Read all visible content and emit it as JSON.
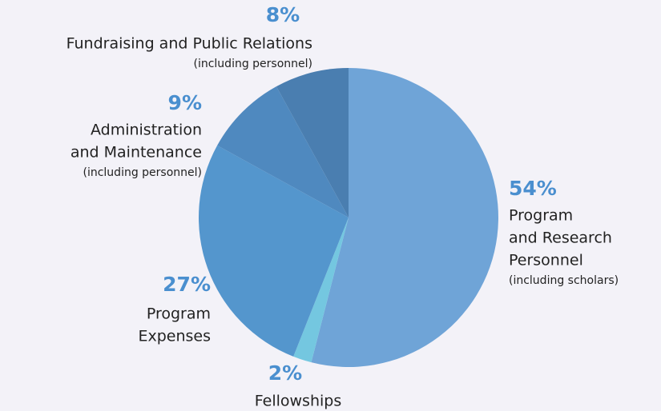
{
  "chart_data": {
    "type": "pie",
    "categories": [
      [
        "Program",
        "and Research",
        "Personnel"
      ],
      [
        "Fellowships"
      ],
      [
        "Program",
        "Expenses"
      ],
      [
        "Administration",
        "and Maintenance"
      ],
      [
        "Fundraising and Public Relations"
      ]
    ],
    "notes": [
      "(including scholars)",
      null,
      null,
      "(including personnel)",
      "(including personnel)"
    ],
    "values": [
      54,
      2,
      27,
      9,
      8
    ],
    "value_labels": [
      "54%",
      "2%",
      "27%",
      "9%",
      "8%"
    ],
    "colors": [
      "#6fa4d7",
      "#74c7e0",
      "#5496cd",
      "#4f89bf",
      "#4a7eb0"
    ]
  }
}
